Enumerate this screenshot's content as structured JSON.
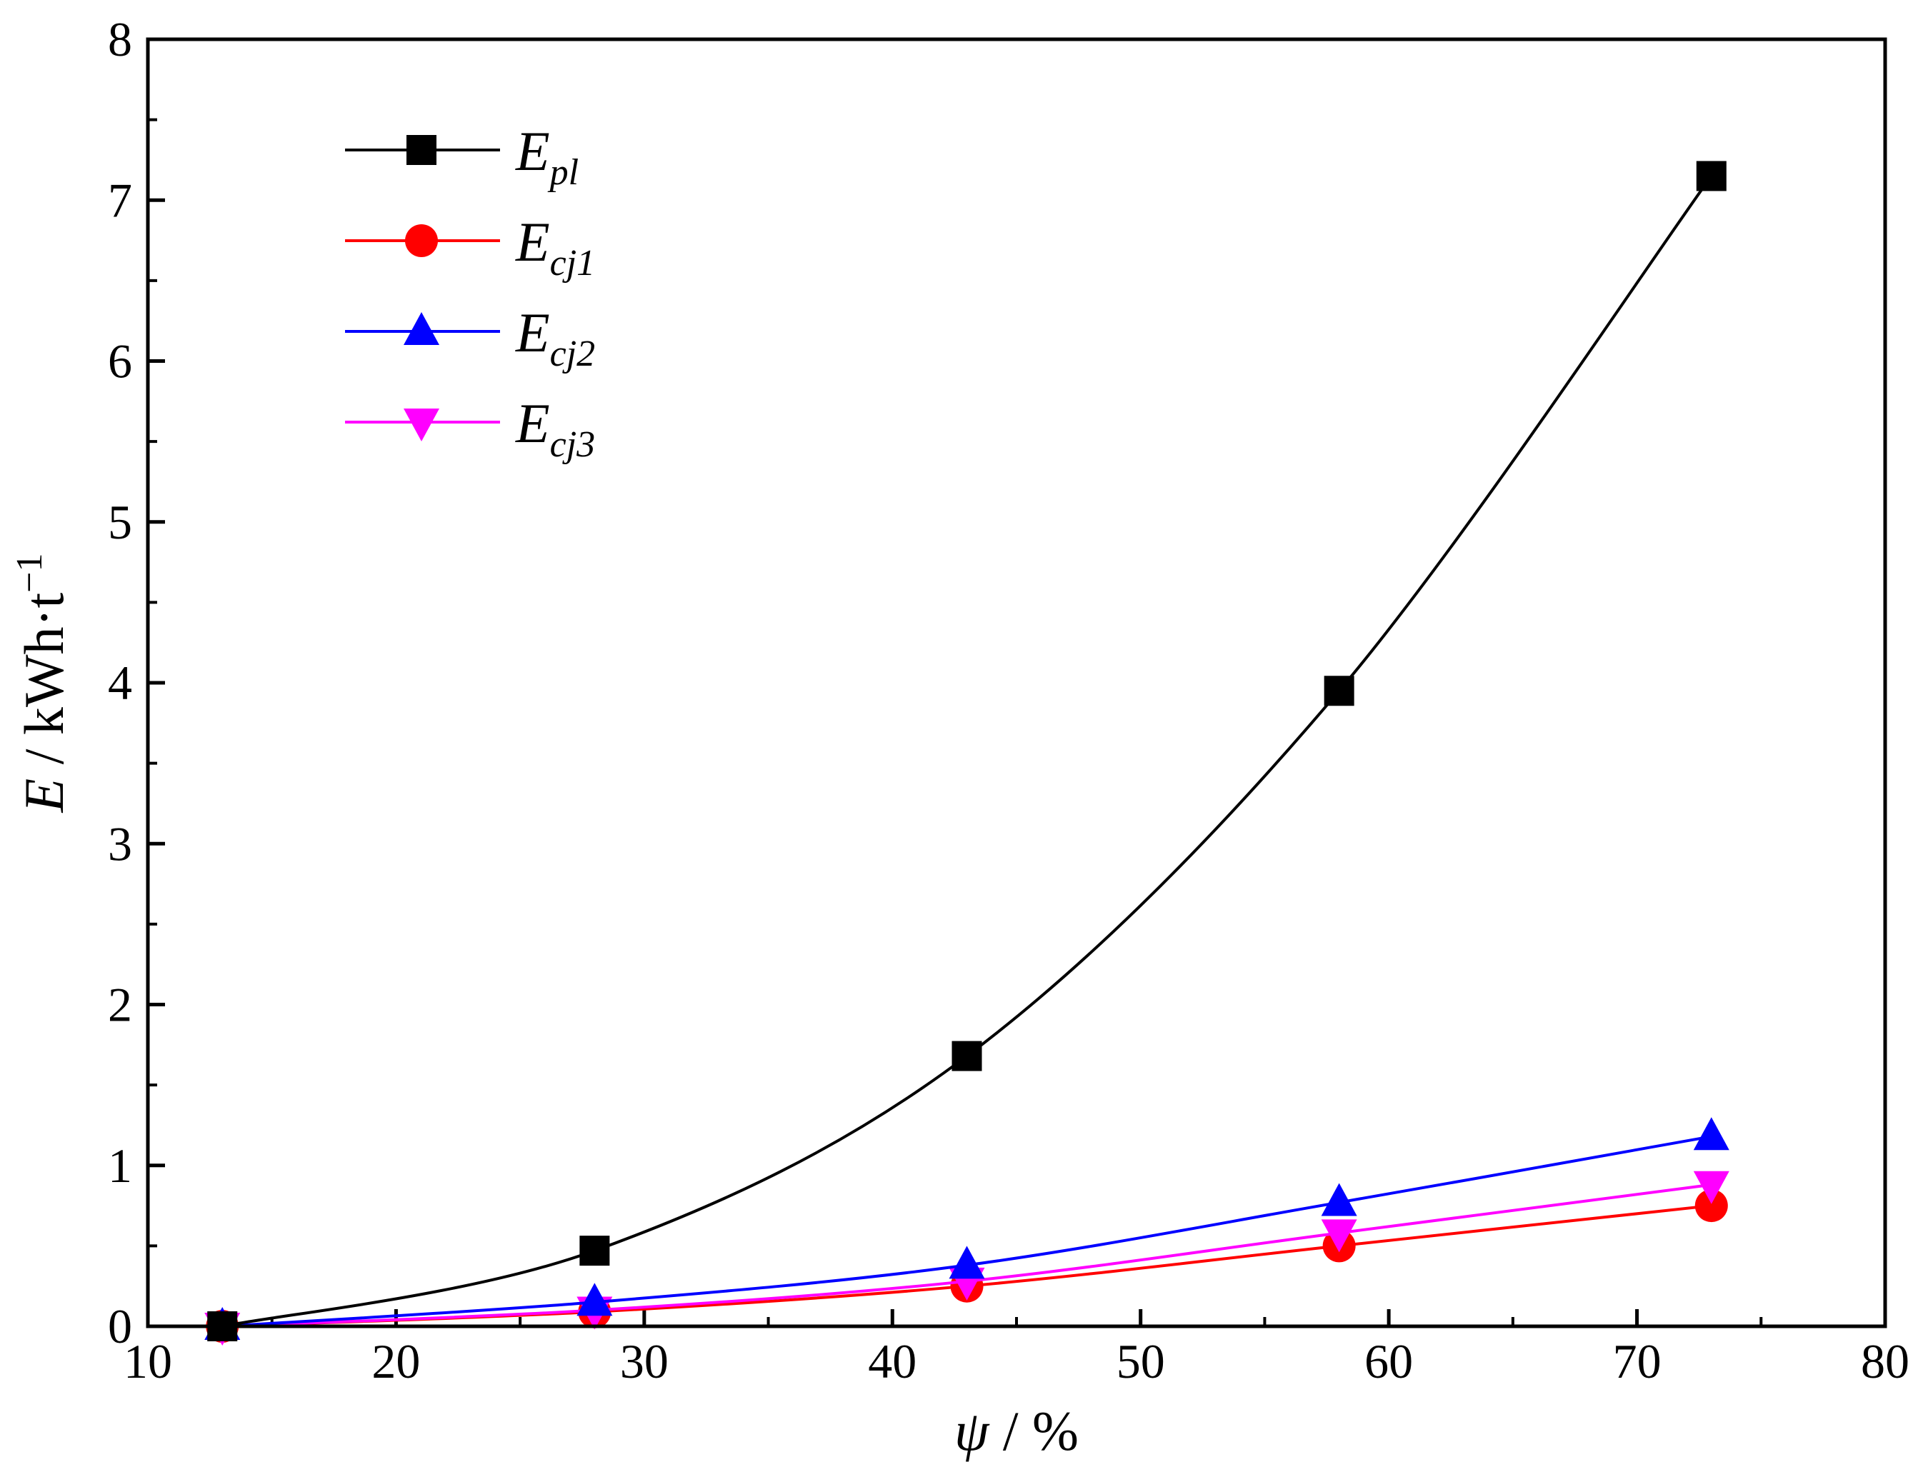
{
  "chart_data": {
    "type": "line",
    "xlabel": {
      "symbol": "ψ",
      "unit": " / %"
    },
    "ylabel": {
      "symbol": "E",
      "unit": " / kWh·t",
      "sup": "−1"
    },
    "xlim": [
      10,
      80
    ],
    "ylim": [
      0,
      8
    ],
    "x_ticks": [
      10,
      20,
      30,
      40,
      50,
      60,
      70,
      80
    ],
    "y_ticks": [
      0,
      1,
      2,
      3,
      4,
      5,
      6,
      7,
      8
    ],
    "grid": false,
    "legend_position": "top-left",
    "x": [
      13,
      28,
      43,
      58,
      73
    ],
    "series": [
      {
        "name": "E_pl",
        "main": "E",
        "sub": "pl",
        "color": "#000000",
        "marker": "square",
        "values": [
          0.0,
          0.47,
          1.68,
          3.95,
          7.15
        ]
      },
      {
        "name": "E_cj1",
        "main": "E",
        "sub": "cj1",
        "color": "#ff0000",
        "marker": "circle",
        "values": [
          0.0,
          0.09,
          0.25,
          0.5,
          0.75
        ]
      },
      {
        "name": "E_cj2",
        "main": "E",
        "sub": "cj2",
        "color": "#0000ff",
        "marker": "triangle-up",
        "values": [
          0.0,
          0.15,
          0.38,
          0.77,
          1.18
        ]
      },
      {
        "name": "E_cj3",
        "main": "E",
        "sub": "cj3",
        "color": "#ff00ff",
        "marker": "triangle-down",
        "values": [
          0.0,
          0.1,
          0.28,
          0.58,
          0.88
        ]
      }
    ]
  }
}
